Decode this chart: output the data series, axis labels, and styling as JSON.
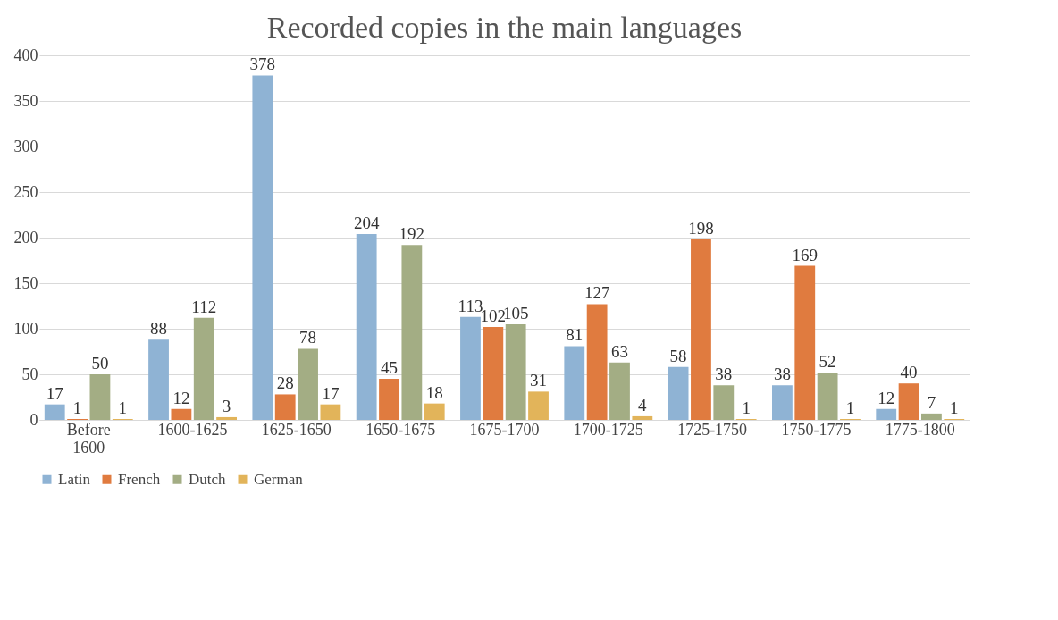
{
  "chart_data": {
    "type": "bar",
    "title": "Recorded copies in the main languages",
    "categories": [
      "Before 1600",
      "1600-1625",
      "1625-1650",
      "1650-1675",
      "1675-1700",
      "1700-1725",
      "1725-1750",
      "1750-1775",
      "1775-1800"
    ],
    "series": [
      {
        "name": "Latin",
        "color": "#8fb3d4",
        "values": [
          17,
          88,
          378,
          204,
          113,
          81,
          58,
          38,
          12
        ]
      },
      {
        "name": "French",
        "color": "#e07b3f",
        "values": [
          1,
          12,
          28,
          45,
          102,
          127,
          198,
          169,
          40
        ]
      },
      {
        "name": "Dutch",
        "color": "#a3ad84",
        "values": [
          50,
          112,
          78,
          192,
          105,
          63,
          38,
          52,
          7
        ]
      },
      {
        "name": "German",
        "color": "#e2b45a",
        "values": [
          1,
          3,
          17,
          18,
          31,
          4,
          1,
          1,
          1
        ]
      }
    ],
    "ylim": [
      0,
      400
    ],
    "yticks": [
      0,
      50,
      100,
      150,
      200,
      250,
      300,
      350,
      400
    ],
    "grid": "y",
    "legend": "bottom",
    "data_labels": true
  }
}
